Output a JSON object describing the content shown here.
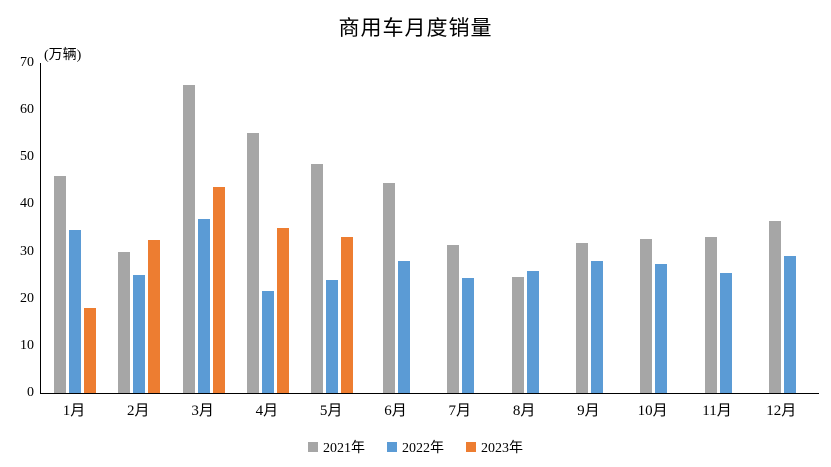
{
  "chart_data": {
    "type": "bar",
    "title": "商用车月度销量",
    "unit_label": "(万辆)",
    "categories": [
      "1月",
      "2月",
      "3月",
      "4月",
      "5月",
      "6月",
      "7月",
      "8月",
      "9月",
      "10月",
      "11月",
      "12月"
    ],
    "series": [
      {
        "name": "2021年",
        "color": "#A6A6A6",
        "values": [
          46.0,
          29.9,
          65.3,
          55.1,
          48.5,
          44.6,
          31.3,
          24.7,
          31.8,
          32.7,
          33.0,
          36.4
        ]
      },
      {
        "name": "2022年",
        "color": "#5B9BD5",
        "values": [
          34.5,
          25.0,
          37.0,
          21.7,
          23.9,
          28.0,
          24.4,
          25.8,
          27.9,
          27.3,
          25.4,
          29.1
        ]
      },
      {
        "name": "2023年",
        "color": "#ED7D31",
        "values": [
          18.0,
          32.4,
          43.7,
          35.0,
          33.0,
          null,
          null,
          null,
          null,
          null,
          null,
          null
        ]
      }
    ],
    "ylim": [
      0,
      70
    ],
    "ytick_step": 10,
    "yticks": [
      0,
      10,
      20,
      30,
      40,
      50,
      60,
      70
    ],
    "grid": false,
    "legend_position": "bottom",
    "axis_color": "#000000"
  }
}
